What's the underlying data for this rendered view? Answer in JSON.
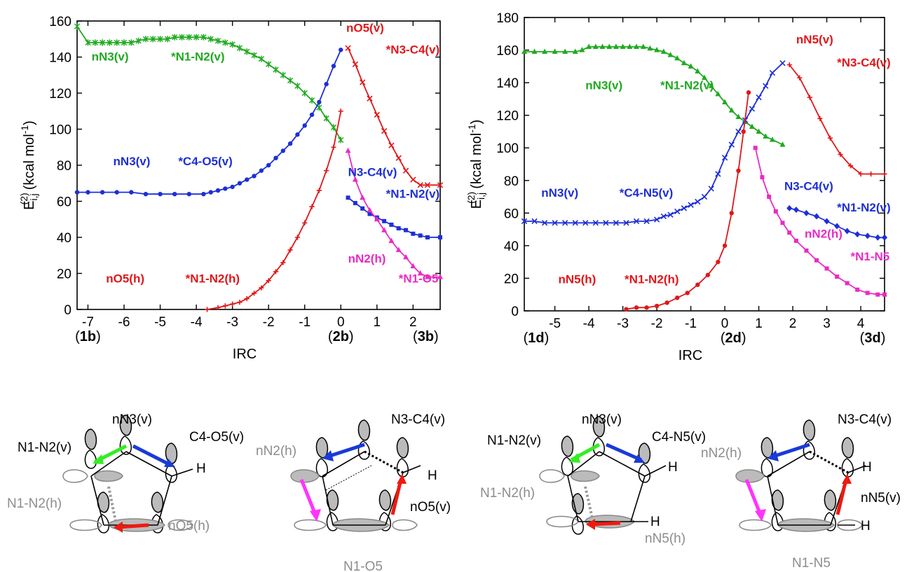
{
  "colors": {
    "green": "#1faa1f",
    "blue": "#1d2fd6",
    "red": "#e0171a",
    "magenta": "#e82cc4",
    "gray": "#8c8c8c",
    "bright_green": "#33ee22",
    "arrow_blue": "#1a3ad8",
    "arrow_red": "#ee1a10",
    "arrow_magenta": "#ff33ff"
  },
  "chart_data": [
    {
      "type": "line",
      "ylabel_main": "E",
      "ylabel_sub": "i,j",
      "ylabel_sup": "(2)",
      "ylabel_unit_pre": "(kcal mol",
      "ylabel_unit_sup": "-1",
      "ylabel_unit_post": ")",
      "xlabel": "IRC",
      "xlim": [
        -7.3,
        2.75
      ],
      "ylim": [
        0,
        160
      ],
      "xticks": [
        -7,
        -6,
        -5,
        -4,
        -3,
        -2,
        -1,
        0,
        1,
        2
      ],
      "yticks": [
        0,
        20,
        40,
        60,
        80,
        100,
        120,
        140,
        160
      ],
      "point_labels": [
        {
          "x": -7,
          "pre": "(",
          "bold": "1b",
          "post": ")"
        },
        {
          "x": 0,
          "pre": "(",
          "bold": "2b",
          "post": ")"
        },
        {
          "x": 2.35,
          "pre": "(",
          "bold": "3b",
          "post": ")"
        }
      ],
      "series": [
        {
          "color": "green",
          "marker": "star",
          "x": [
            -7.3,
            -7.0,
            -6.8,
            -6.6,
            -6.4,
            -6.2,
            -6.0,
            -5.8,
            -5.6,
            -5.4,
            -5.2,
            -5.0,
            -4.8,
            -4.6,
            -4.4,
            -4.2,
            -4.0,
            -3.8,
            -3.6,
            -3.4,
            -3.2,
            -3.0,
            -2.8,
            -2.6,
            -2.4,
            -2.2,
            -2.0,
            -1.8,
            -1.6,
            -1.4,
            -1.2,
            -1.0,
            -0.8,
            -0.6,
            -0.4,
            -0.2,
            0.0
          ],
          "y": [
            157,
            148,
            148,
            148,
            148,
            148,
            148,
            148,
            149,
            150,
            150,
            150,
            150,
            151,
            151,
            151,
            151,
            151,
            150,
            149,
            148,
            147,
            145,
            143,
            141,
            139,
            136,
            133,
            130,
            127,
            124,
            120,
            116,
            112,
            106,
            101,
            94
          ]
        },
        {
          "color": "blue",
          "marker": "dot",
          "x": [
            -7.3,
            -7.0,
            -6.6,
            -6.2,
            -5.8,
            -5.4,
            -5.0,
            -4.6,
            -4.2,
            -3.8,
            -3.6,
            -3.4,
            -3.2,
            -3.0,
            -2.8,
            -2.6,
            -2.4,
            -2.2,
            -2.0,
            -1.8,
            -1.6,
            -1.4,
            -1.2,
            -1.0,
            -0.8,
            -0.6,
            -0.4,
            -0.2,
            0.0
          ],
          "y": [
            65,
            65,
            65,
            65,
            65,
            64,
            64,
            64,
            64,
            64,
            65,
            66,
            67,
            68,
            70,
            72,
            74,
            77,
            80,
            84,
            88,
            92,
            97,
            102,
            108,
            115,
            125,
            135,
            144
          ]
        },
        {
          "color": "red",
          "marker": "plus",
          "x": [
            -3.7,
            -3.4,
            -3.2,
            -3.0,
            -2.8,
            -2.6,
            -2.4,
            -2.2,
            -2.0,
            -1.8,
            -1.6,
            -1.4,
            -1.2,
            -1.0,
            -0.8,
            -0.6,
            -0.4,
            -0.2,
            0.0
          ],
          "y": [
            0,
            1,
            2,
            3,
            4,
            6,
            9,
            12,
            16,
            21,
            26,
            33,
            40,
            48,
            57,
            66,
            77,
            90,
            110
          ]
        },
        {
          "color": "red",
          "marker": "cross",
          "x": [
            0.2,
            0.4,
            0.6,
            0.8,
            1.0,
            1.2,
            1.4,
            1.6,
            1.8,
            2.0,
            2.2,
            2.4,
            2.75
          ],
          "y": [
            145,
            136,
            126,
            117,
            108,
            99,
            91,
            84,
            77,
            72,
            69,
            69,
            69
          ]
        },
        {
          "color": "blue",
          "marker": "square",
          "x": [
            0.2,
            0.4,
            0.6,
            0.8,
            1.0,
            1.2,
            1.4,
            1.6,
            1.8,
            2.0,
            2.2,
            2.4,
            2.75
          ],
          "y": [
            62,
            59,
            56,
            53,
            51,
            49,
            47,
            45,
            44,
            42,
            41,
            40,
            40
          ]
        },
        {
          "color": "magenta",
          "marker": "triangle",
          "x": [
            0.2,
            0.4,
            0.6,
            0.8,
            1.0,
            1.2,
            1.4,
            1.6,
            1.8,
            2.0,
            2.2,
            2.4,
            2.75
          ],
          "y": [
            88,
            72,
            62,
            55,
            50,
            44,
            38,
            33,
            29,
            24,
            20,
            18,
            18
          ]
        }
      ],
      "annotations": [
        {
          "text": "nN3(v)",
          "x": -6.9,
          "y": 138,
          "color": "green"
        },
        {
          "text": "*N1-N2(v)",
          "x": -4.7,
          "y": 138,
          "color": "green"
        },
        {
          "text": "nN3(v)",
          "x": -6.3,
          "y": 80,
          "color": "blue"
        },
        {
          "text": "*C4-O5(v)",
          "x": -4.5,
          "y": 80,
          "color": "blue"
        },
        {
          "text": "nO5(h)",
          "x": -6.5,
          "y": 15,
          "color": "red"
        },
        {
          "text": "*N1-N2(h)",
          "x": -4.3,
          "y": 15,
          "color": "red"
        },
        {
          "text": "nO5(v)",
          "x": 0.15,
          "y": 154,
          "color": "red"
        },
        {
          "text": "*N3-C4(v)",
          "x": 1.25,
          "y": 142,
          "color": "red"
        },
        {
          "text": "N3-C4(v)",
          "x": 0.2,
          "y": 74,
          "color": "blue"
        },
        {
          "text": "*N1-N2(v)",
          "x": 1.25,
          "y": 62,
          "color": "blue"
        },
        {
          "text": "nN2(h)",
          "x": 0.2,
          "y": 26,
          "color": "magenta"
        },
        {
          "text": "*N1-O5",
          "x": 1.6,
          "y": 15,
          "color": "magenta"
        }
      ]
    },
    {
      "type": "line",
      "ylabel_main": "E",
      "ylabel_sub": "i,j",
      "ylabel_sup": "(2)",
      "ylabel_unit_pre": "(kcal mol",
      "ylabel_unit_sup": "-1",
      "ylabel_unit_post": ")",
      "xlabel": "IRC",
      "xlim": [
        -5.9,
        4.7
      ],
      "ylim": [
        0,
        180
      ],
      "xticks": [
        -5,
        -4,
        -3,
        -2,
        -1,
        0,
        1,
        2,
        3,
        4
      ],
      "yticks": [
        0,
        20,
        40,
        60,
        80,
        100,
        120,
        140,
        160,
        180
      ],
      "point_labels": [
        {
          "x": -5.55,
          "pre": "(",
          "bold": "1d",
          "post": ")"
        },
        {
          "x": 0.25,
          "pre": "(",
          "bold": "2d",
          "post": ")"
        },
        {
          "x": 4.35,
          "pre": "(",
          "bold": "3d",
          "post": ")"
        }
      ],
      "series": [
        {
          "color": "green",
          "marker": "triangle",
          "x": [
            -5.9,
            -5.6,
            -5.3,
            -5.0,
            -4.7,
            -4.4,
            -4.2,
            -4.0,
            -3.8,
            -3.6,
            -3.4,
            -3.2,
            -3.0,
            -2.8,
            -2.6,
            -2.4,
            -2.2,
            -2.0,
            -1.8,
            -1.6,
            -1.4,
            -1.2,
            -1.0,
            -0.8,
            -0.6,
            -0.4,
            -0.2,
            0.0,
            0.2,
            0.4,
            0.6,
            0.8,
            1.0,
            1.2,
            1.4,
            1.7
          ],
          "y": [
            159,
            159,
            159,
            159,
            159,
            159,
            160,
            162,
            162,
            162,
            162,
            162,
            162,
            162,
            162,
            162,
            161,
            160,
            159,
            157,
            155,
            152,
            150,
            147,
            143,
            138,
            133,
            128,
            123,
            119,
            116,
            113,
            110,
            107,
            105,
            102
          ]
        },
        {
          "color": "blue",
          "marker": "cross",
          "x": [
            -5.9,
            -5.6,
            -5.3,
            -5.0,
            -4.7,
            -4.4,
            -4.1,
            -3.8,
            -3.5,
            -3.2,
            -2.9,
            -2.6,
            -2.3,
            -2.0,
            -1.8,
            -1.6,
            -1.4,
            -1.2,
            -1.0,
            -0.8,
            -0.6,
            -0.4,
            -0.2,
            0.0,
            0.2,
            0.4,
            0.6,
            0.8,
            1.0,
            1.2,
            1.4,
            1.7
          ],
          "y": [
            55,
            55,
            54,
            54,
            54,
            54,
            54,
            54,
            54,
            54,
            54,
            55,
            55,
            56,
            58,
            59,
            61,
            63,
            65,
            67,
            70,
            75,
            84,
            94,
            102,
            110,
            117,
            124,
            131,
            138,
            146,
            152
          ]
        },
        {
          "color": "red",
          "marker": "dot",
          "x": [
            -2.9,
            -2.6,
            -2.3,
            -2.0,
            -1.7,
            -1.4,
            -1.1,
            -0.8,
            -0.5,
            -0.2,
            0.0,
            0.2,
            0.4,
            0.55,
            0.7
          ],
          "y": [
            1,
            2,
            2,
            3,
            5,
            8,
            11,
            16,
            22,
            30,
            40,
            60,
            86,
            110,
            134
          ]
        },
        {
          "color": "red",
          "marker": "plus",
          "x": [
            1.9,
            2.2,
            2.5,
            2.8,
            3.1,
            3.4,
            3.7,
            4.0,
            4.3,
            4.7
          ],
          "y": [
            151,
            143,
            131,
            118,
            106,
            96,
            89,
            84,
            84,
            84
          ]
        },
        {
          "color": "blue",
          "marker": "diamond",
          "x": [
            1.9,
            2.1,
            2.4,
            2.7,
            3.0,
            3.3,
            3.6,
            3.9,
            4.2,
            4.5,
            4.7
          ],
          "y": [
            63,
            62,
            60,
            58,
            55,
            52,
            49,
            47,
            46,
            45,
            45
          ]
        },
        {
          "color": "magenta",
          "marker": "square",
          "x": [
            0.9,
            1.1,
            1.3,
            1.5,
            1.7,
            1.9,
            2.1,
            2.4,
            2.7,
            3.0,
            3.3,
            3.6,
            3.9,
            4.2,
            4.5,
            4.7
          ],
          "y": [
            100,
            82,
            70,
            61,
            54,
            48,
            43,
            37,
            31,
            26,
            21,
            17,
            13,
            11,
            10,
            10
          ]
        }
      ],
      "annotations": [
        {
          "text": "nN3(v)",
          "x": -4.1,
          "y": 136,
          "color": "green"
        },
        {
          "text": "*N1-N2(v)",
          "x": -1.9,
          "y": 136,
          "color": "green"
        },
        {
          "text": "nN3(v)",
          "x": -5.4,
          "y": 70,
          "color": "blue"
        },
        {
          "text": "*C4-N5(v)",
          "x": -3.1,
          "y": 70,
          "color": "blue"
        },
        {
          "text": "nN5(h)",
          "x": -4.9,
          "y": 17,
          "color": "red"
        },
        {
          "text": "*N1-N2(h)",
          "x": -2.95,
          "y": 17,
          "color": "red"
        },
        {
          "text": "nN5(v)",
          "x": 2.1,
          "y": 164,
          "color": "red"
        },
        {
          "text": "*N3-C4(v)",
          "x": 3.3,
          "y": 150,
          "color": "red"
        },
        {
          "text": "N3-C4(v)",
          "x": 1.75,
          "y": 74,
          "color": "blue"
        },
        {
          "text": "*N1-N2(v)",
          "x": 3.3,
          "y": 61,
          "color": "blue"
        },
        {
          "text": "nN2(h)",
          "x": 2.35,
          "y": 45,
          "color": "magenta"
        },
        {
          "text": "*N1-N5",
          "x": 3.7,
          "y": 31,
          "color": "magenta"
        }
      ]
    }
  ],
  "molecules": [
    {
      "labels": [
        {
          "text": "nN3(v)",
          "color": "black"
        },
        {
          "text": "N1-N2(v)",
          "color": "black"
        },
        {
          "text": "C4-O5(v)",
          "color": "black"
        },
        {
          "text": "H",
          "color": "black"
        },
        {
          "text": "N1-N2(h)",
          "color": "gray"
        },
        {
          "text": "nO5(h)",
          "color": "gray"
        }
      ]
    },
    {
      "labels": [
        {
          "text": "N3-C4(v)",
          "color": "black"
        },
        {
          "text": "nN2(h)",
          "color": "gray"
        },
        {
          "text": "H",
          "color": "black"
        },
        {
          "text": "nO5(v)",
          "color": "black"
        },
        {
          "text": "N1-O5",
          "color": "gray"
        }
      ]
    },
    {
      "labels": [
        {
          "text": "nN3(v)",
          "color": "black"
        },
        {
          "text": "N1-N2(v)",
          "color": "black"
        },
        {
          "text": "C4-N5(v)",
          "color": "black"
        },
        {
          "text": "H",
          "color": "black"
        },
        {
          "text": "N1-N2(h)",
          "color": "gray"
        },
        {
          "text": "H",
          "color": "black"
        },
        {
          "text": "nN5(h)",
          "color": "gray"
        }
      ]
    },
    {
      "labels": [
        {
          "text": "N3-C4(v)",
          "color": "black"
        },
        {
          "text": "nN2(h)",
          "color": "gray"
        },
        {
          "text": "H",
          "color": "black"
        },
        {
          "text": "nN5(v)",
          "color": "black"
        },
        {
          "text": "H",
          "color": "black"
        },
        {
          "text": "N1-N5",
          "color": "gray"
        }
      ]
    }
  ]
}
